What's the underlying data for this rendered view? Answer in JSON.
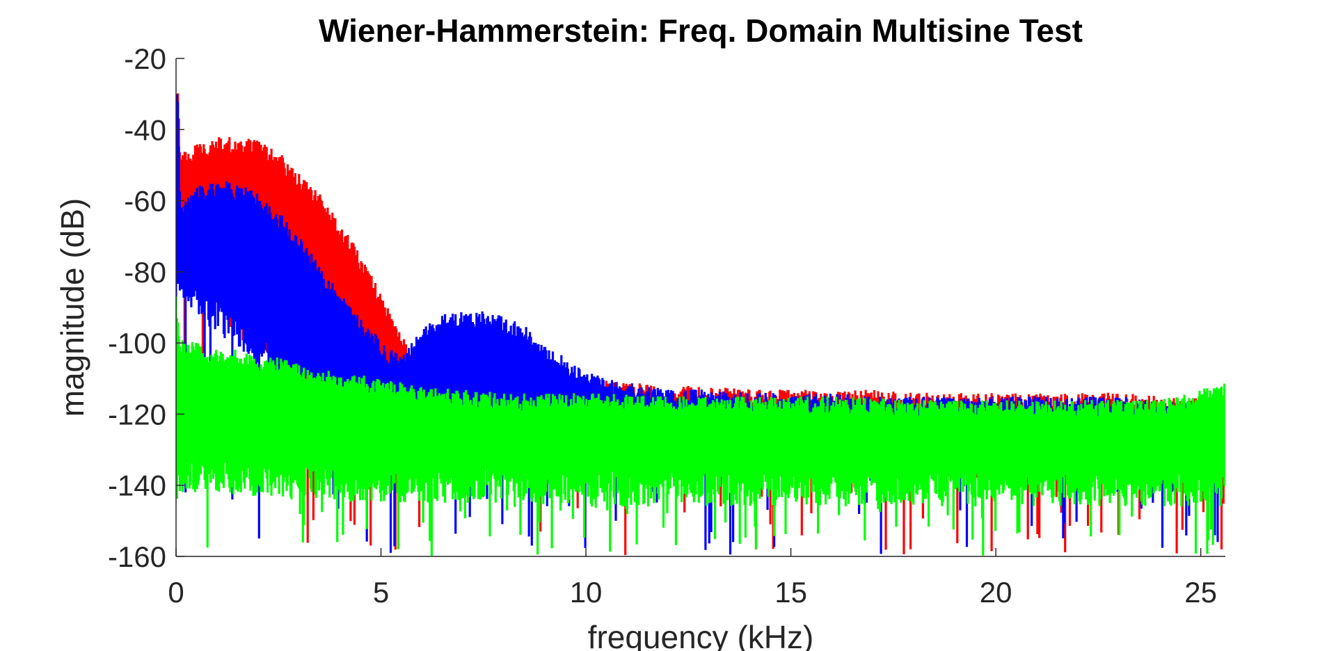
{
  "chart_data": {
    "type": "line",
    "title": "Wiener-Hammerstein: Freq. Domain Multisine Test",
    "xlabel": "frequency (kHz)",
    "ylabel": "magnitude (dB)",
    "xlim": [
      0,
      25.6
    ],
    "ylim": [
      -160,
      -20
    ],
    "xticks": [
      0,
      5,
      10,
      15,
      20,
      25
    ],
    "xtick_labels": [
      "0",
      "5",
      "10",
      "15",
      "20",
      "25"
    ],
    "yticks": [
      -20,
      -40,
      -60,
      -80,
      -100,
      -120,
      -140,
      -160
    ],
    "ytick_labels": [
      "-20",
      "-40",
      "-60",
      "-80",
      "-100",
      "-120",
      "-140",
      "-160"
    ],
    "grid": false,
    "legend": "none",
    "series": [
      {
        "color": "#ff0000",
        "envelope": {
          "x": [
            0,
            0.05,
            0.1,
            0.5,
            1,
            1.5,
            2,
            2.5,
            3,
            3.5,
            4,
            4.5,
            5,
            5.5,
            6,
            7,
            8,
            9,
            10,
            11,
            12,
            13,
            14,
            15,
            16,
            17,
            18,
            19,
            20,
            21,
            22,
            23,
            24,
            25,
            25.6
          ],
          "upper": [
            -30,
            -29,
            -47,
            -44,
            -42,
            -42,
            -43,
            -46,
            -52,
            -58,
            -66,
            -75,
            -86,
            -98,
            -103,
            -106,
            -108,
            -109,
            -110,
            -111,
            -112,
            -112,
            -113,
            -113,
            -113,
            -113,
            -114,
            -114,
            -114,
            -114,
            -114,
            -114,
            -115,
            -115,
            -116
          ],
          "lower": [
            -80,
            -75,
            -70,
            -76,
            -81,
            -88,
            -93,
            -97,
            -99,
            -103,
            -107,
            -110,
            -112,
            -115,
            -119,
            -120,
            -121,
            -121,
            -122,
            -122,
            -122,
            -122,
            -122,
            -122,
            -122,
            -122,
            -122,
            -122,
            -122,
            -122,
            -122,
            -122,
            -122,
            -122,
            -122
          ],
          "dips_to": -160
        }
      },
      {
        "color": "#0000ff",
        "envelope": {
          "x": [
            0,
            0.05,
            0.1,
            0.5,
            1,
            1.5,
            2,
            2.5,
            3,
            3.5,
            4,
            4.5,
            5,
            5.5,
            6,
            6.5,
            7,
            7.5,
            8,
            8.5,
            9,
            9.5,
            10,
            11,
            12,
            13,
            14,
            15,
            16,
            17,
            18,
            19,
            20,
            21,
            22,
            23,
            24,
            25,
            25.6
          ],
          "upper": [
            -30,
            -29,
            -60,
            -56,
            -54,
            -55,
            -58,
            -63,
            -70,
            -78,
            -86,
            -93,
            -99,
            -104,
            -96,
            -92,
            -90,
            -91,
            -92,
            -95,
            -100,
            -104,
            -108,
            -111,
            -113,
            -113,
            -114,
            -114,
            -114,
            -115,
            -115,
            -115,
            -115,
            -115,
            -115,
            -115,
            -116,
            -116,
            -117
          ],
          "lower": [
            -80,
            -78,
            -76,
            -82,
            -88,
            -92,
            -96,
            -101,
            -105,
            -109,
            -112,
            -114,
            -115,
            -116,
            -117,
            -119,
            -120,
            -120,
            -120,
            -121,
            -121,
            -121,
            -121,
            -121,
            -121,
            -121,
            -121,
            -121,
            -121,
            -121,
            -121,
            -121,
            -121,
            -121,
            -121,
            -121,
            -121,
            -121,
            -121
          ],
          "dips_to": -160
        }
      },
      {
        "color": "#00ff00",
        "envelope": {
          "x": [
            0,
            0.1,
            0.5,
            1,
            1.5,
            2,
            2.5,
            3,
            3.5,
            4,
            5,
            6,
            7,
            8,
            10,
            12,
            14,
            16,
            18,
            20,
            22,
            24,
            25.6
          ],
          "upper": [
            -85,
            -99,
            -100,
            -101,
            -102,
            -103,
            -104,
            -106,
            -107,
            -108,
            -110,
            -112,
            -113,
            -114,
            -114,
            -115,
            -115,
            -115,
            -116,
            -116,
            -116,
            -116,
            -111
          ],
          "lower": [
            -130,
            -132,
            -132,
            -133,
            -133,
            -133,
            -134,
            -134,
            -134,
            -135,
            -135,
            -135,
            -135,
            -136,
            -136,
            -136,
            -136,
            -136,
            -136,
            -136,
            -136,
            -136,
            -136
          ],
          "dips_to": -160
        }
      }
    ]
  }
}
